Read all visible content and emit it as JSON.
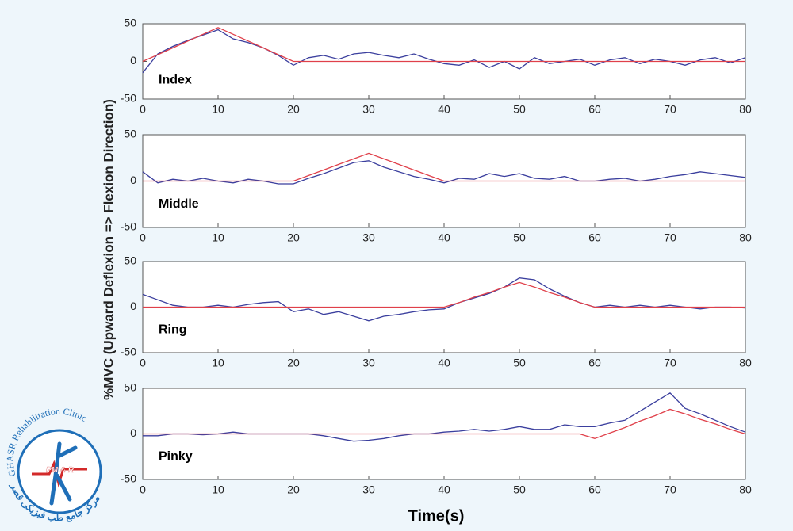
{
  "chart_data": [
    {
      "type": "line",
      "title": "Index",
      "x": [
        0,
        2,
        4,
        6,
        8,
        10,
        12,
        14,
        16,
        18,
        20,
        22,
        24,
        26,
        28,
        30,
        32,
        34,
        36,
        38,
        40,
        42,
        44,
        46,
        48,
        50,
        52,
        54,
        56,
        58,
        60,
        62,
        64,
        66,
        68,
        70,
        72,
        74,
        76,
        78,
        80
      ],
      "xlim": [
        0,
        80
      ],
      "xticks": [
        0,
        10,
        20,
        30,
        40,
        50,
        60,
        70,
        80
      ],
      "ylim": [
        -50,
        50
      ],
      "yticks": [
        -50,
        0,
        50
      ],
      "series": [
        {
          "color": "#3b3f9e",
          "values": [
            -15,
            10,
            20,
            28,
            35,
            42,
            30,
            25,
            18,
            8,
            -5,
            5,
            8,
            3,
            10,
            12,
            8,
            5,
            10,
            3,
            -3,
            -5,
            2,
            -8,
            0,
            -10,
            5,
            -3,
            0,
            3,
            -5,
            2,
            5,
            -3,
            3,
            0,
            -5,
            2,
            5,
            -2,
            5
          ]
        },
        {
          "color": "#e0404a",
          "values": [
            0,
            9,
            18,
            27,
            36,
            45,
            36,
            27,
            18,
            9,
            0,
            0,
            0,
            0,
            0,
            0,
            0,
            0,
            0,
            0,
            0,
            0,
            0,
            0,
            0,
            0,
            0,
            0,
            0,
            0,
            0,
            0,
            0,
            0,
            0,
            0,
            0,
            0,
            0,
            0,
            0
          ]
        }
      ]
    },
    {
      "type": "line",
      "title": "Middle",
      "x": [
        0,
        2,
        4,
        6,
        8,
        10,
        12,
        14,
        16,
        18,
        20,
        22,
        24,
        26,
        28,
        30,
        32,
        34,
        36,
        38,
        40,
        42,
        44,
        46,
        48,
        50,
        52,
        54,
        56,
        58,
        60,
        62,
        64,
        66,
        68,
        70,
        72,
        74,
        76,
        78,
        80
      ],
      "xlim": [
        0,
        80
      ],
      "xticks": [
        0,
        10,
        20,
        30,
        40,
        50,
        60,
        70,
        80
      ],
      "ylim": [
        -50,
        50
      ],
      "yticks": [
        -50,
        0,
        50
      ],
      "series": [
        {
          "color": "#3b3f9e",
          "values": [
            10,
            -2,
            2,
            0,
            3,
            0,
            -2,
            2,
            0,
            -3,
            -3,
            3,
            8,
            14,
            20,
            22,
            15,
            10,
            5,
            2,
            -2,
            3,
            2,
            8,
            5,
            8,
            3,
            2,
            5,
            0,
            0,
            2,
            3,
            0,
            2,
            5,
            7,
            10,
            8,
            6,
            4
          ]
        },
        {
          "color": "#e0404a",
          "values": [
            0,
            0,
            0,
            0,
            0,
            0,
            0,
            0,
            0,
            0,
            0,
            6,
            12,
            18,
            24,
            30,
            24,
            18,
            12,
            6,
            0,
            0,
            0,
            0,
            0,
            0,
            0,
            0,
            0,
            0,
            0,
            0,
            0,
            0,
            0,
            0,
            0,
            0,
            0,
            0,
            0
          ]
        }
      ]
    },
    {
      "type": "line",
      "title": "Ring",
      "x": [
        0,
        2,
        4,
        6,
        8,
        10,
        12,
        14,
        16,
        18,
        20,
        22,
        24,
        26,
        28,
        30,
        32,
        34,
        36,
        38,
        40,
        42,
        44,
        46,
        48,
        50,
        52,
        54,
        56,
        58,
        60,
        62,
        64,
        66,
        68,
        70,
        72,
        74,
        76,
        78,
        80
      ],
      "xlim": [
        0,
        80
      ],
      "xticks": [
        0,
        10,
        20,
        30,
        40,
        50,
        60,
        70,
        80
      ],
      "ylim": [
        -50,
        50
      ],
      "yticks": [
        -50,
        0,
        50
      ],
      "series": [
        {
          "color": "#3b3f9e",
          "values": [
            14,
            8,
            2,
            0,
            0,
            2,
            0,
            3,
            5,
            6,
            -5,
            -2,
            -8,
            -5,
            -10,
            -15,
            -10,
            -8,
            -5,
            -3,
            -2,
            5,
            10,
            15,
            22,
            32,
            30,
            20,
            12,
            5,
            0,
            2,
            0,
            2,
            0,
            2,
            0,
            -2,
            0,
            0,
            -1
          ]
        },
        {
          "color": "#e0404a",
          "values": [
            0,
            0,
            0,
            0,
            0,
            0,
            0,
            0,
            0,
            0,
            0,
            0,
            0,
            0,
            0,
            0,
            0,
            0,
            0,
            0,
            0,
            5,
            11,
            16,
            22,
            27,
            22,
            16,
            11,
            5,
            0,
            0,
            0,
            0,
            0,
            0,
            0,
            0,
            0,
            0,
            0
          ]
        }
      ]
    },
    {
      "type": "line",
      "title": "Pinky",
      "x": [
        0,
        2,
        4,
        6,
        8,
        10,
        12,
        14,
        16,
        18,
        20,
        22,
        24,
        26,
        28,
        30,
        32,
        34,
        36,
        38,
        40,
        42,
        44,
        46,
        48,
        50,
        52,
        54,
        56,
        58,
        60,
        62,
        64,
        66,
        68,
        70,
        72,
        74,
        76,
        78,
        80
      ],
      "xlim": [
        0,
        80
      ],
      "xticks": [
        0,
        10,
        20,
        30,
        40,
        50,
        60,
        70,
        80
      ],
      "ylim": [
        -50,
        50
      ],
      "yticks": [
        -50,
        0,
        50
      ],
      "series": [
        {
          "color": "#3b3f9e",
          "values": [
            -2,
            -2,
            0,
            0,
            -1,
            0,
            2,
            0,
            0,
            0,
            0,
            0,
            -2,
            -5,
            -8,
            -7,
            -5,
            -2,
            0,
            0,
            2,
            3,
            5,
            3,
            5,
            8,
            5,
            5,
            10,
            8,
            8,
            12,
            15,
            25,
            35,
            45,
            28,
            22,
            15,
            8,
            2
          ]
        },
        {
          "color": "#e0404a",
          "values": [
            0,
            0,
            0,
            0,
            0,
            0,
            0,
            0,
            0,
            0,
            0,
            0,
            0,
            0,
            0,
            0,
            0,
            0,
            0,
            0,
            0,
            0,
            0,
            0,
            0,
            0,
            0,
            0,
            0,
            0,
            -5,
            1,
            7,
            14,
            20,
            27,
            22,
            16,
            11,
            5,
            0
          ]
        }
      ]
    }
  ],
  "ylabel": "%MVC (Upward Deflexion => Flexion Direction)",
  "xlabel": "Time(s)",
  "logo": {
    "name": "GHASR Rehabilitation Clinic",
    "badge": "PM & R",
    "persian": "مرکز جامع طب فیزیکی قصر"
  }
}
